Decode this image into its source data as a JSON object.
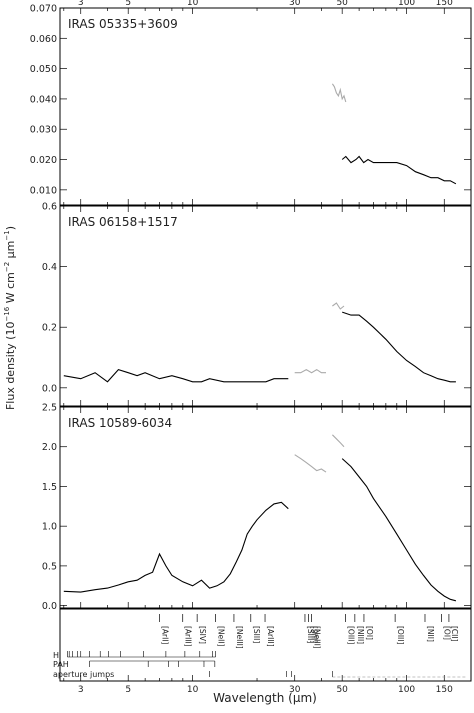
{
  "figure": {
    "ylabel_main": "Flux density (10",
    "ylabel_exp": "−16",
    "ylabel_unit": " W cm",
    "ylabel_exp2": "−2",
    "ylabel_mu": " μm",
    "ylabel_exp3": "−1",
    "ylabel_close": ")",
    "xlabel": "Wavelength (μm)"
  },
  "chart_data": [
    {
      "type": "line",
      "title": "IRAS 05335+3609",
      "xscale": "log",
      "xlim": [
        2.4,
        200
      ],
      "ylim": [
        0.005,
        0.07
      ],
      "top_ticks": [
        "3",
        "5",
        "10",
        "30",
        "50",
        "100",
        "150"
      ],
      "ytick_labels": [
        "0.010",
        "0.020",
        "0.030",
        "0.040",
        "0.050",
        "0.060",
        "0.070"
      ],
      "series": [
        {
          "color": "#aaaaaa",
          "x": [
            45,
            46,
            47,
            48,
            49,
            50,
            51,
            52
          ],
          "y": [
            0.045,
            0.044,
            0.042,
            0.041,
            0.043,
            0.04,
            0.041,
            0.039
          ]
        },
        {
          "color": "#000000",
          "x": [
            50,
            52,
            55,
            58,
            60,
            63,
            66,
            70,
            75,
            80,
            90,
            100,
            110,
            120,
            130,
            140,
            150,
            160,
            170
          ],
          "y": [
            0.02,
            0.021,
            0.019,
            0.02,
            0.021,
            0.019,
            0.02,
            0.019,
            0.019,
            0.019,
            0.019,
            0.018,
            0.016,
            0.015,
            0.014,
            0.014,
            0.013,
            0.013,
            0.012
          ]
        }
      ]
    },
    {
      "type": "line",
      "title": "IRAS 06158+1517",
      "xscale": "log",
      "xlim": [
        2.4,
        200
      ],
      "ylim": [
        -0.06,
        0.6
      ],
      "ytick_labels": [
        "0.0",
        "0.2",
        "0.4",
        "0.6"
      ],
      "series": [
        {
          "color": "#000000",
          "x": [
            2.5,
            3,
            3.5,
            4,
            4.5,
            5,
            5.5,
            6,
            7,
            8,
            9,
            10,
            11,
            12,
            14,
            16,
            18,
            20,
            22,
            24,
            26,
            28
          ],
          "y": [
            0.04,
            0.03,
            0.05,
            0.02,
            0.06,
            0.05,
            0.04,
            0.05,
            0.03,
            0.04,
            0.03,
            0.02,
            0.02,
            0.03,
            0.02,
            0.02,
            0.02,
            0.02,
            0.02,
            0.03,
            0.03,
            0.03
          ]
        },
        {
          "color": "#aaaaaa",
          "x": [
            30,
            32,
            34,
            36,
            38,
            40,
            42
          ],
          "y": [
            0.05,
            0.05,
            0.06,
            0.05,
            0.06,
            0.05,
            0.05
          ]
        },
        {
          "color": "#aaaaaa",
          "x": [
            45,
            47,
            49,
            51
          ],
          "y": [
            0.27,
            0.28,
            0.26,
            0.27
          ]
        },
        {
          "color": "#000000",
          "x": [
            50,
            55,
            60,
            65,
            70,
            80,
            90,
            100,
            110,
            120,
            130,
            140,
            150,
            160,
            170
          ],
          "y": [
            0.25,
            0.24,
            0.24,
            0.22,
            0.2,
            0.16,
            0.12,
            0.09,
            0.07,
            0.05,
            0.04,
            0.03,
            0.025,
            0.02,
            0.02
          ]
        }
      ]
    },
    {
      "type": "line",
      "title": "IRAS 10589-6034",
      "xscale": "log",
      "xlim": [
        2.4,
        200
      ],
      "ylim": [
        -0.03,
        2.5
      ],
      "ytick_labels": [
        "0.0",
        "0.5",
        "1.0",
        "1.5",
        "2.0",
        "2.5"
      ],
      "series": [
        {
          "color": "#000000",
          "x": [
            2.5,
            3,
            3.5,
            4,
            4.5,
            5,
            5.5,
            6,
            6.5,
            7,
            7.5,
            8,
            9,
            10,
            11,
            12,
            13,
            14,
            15,
            16,
            17,
            18,
            19,
            20,
            22,
            24,
            26,
            28
          ],
          "y": [
            0.18,
            0.17,
            0.2,
            0.22,
            0.26,
            0.3,
            0.32,
            0.38,
            0.42,
            0.65,
            0.5,
            0.38,
            0.3,
            0.25,
            0.32,
            0.22,
            0.25,
            0.3,
            0.4,
            0.55,
            0.7,
            0.9,
            1.0,
            1.08,
            1.2,
            1.28,
            1.3,
            1.22
          ]
        },
        {
          "color": "#aaaaaa",
          "x": [
            30,
            32,
            34,
            36,
            38,
            40,
            42
          ],
          "y": [
            1.9,
            1.85,
            1.8,
            1.75,
            1.7,
            1.72,
            1.68
          ]
        },
        {
          "color": "#aaaaaa",
          "x": [
            45,
            47,
            49,
            51
          ],
          "y": [
            2.15,
            2.1,
            2.05,
            2.0
          ]
        },
        {
          "color": "#000000",
          "x": [
            50,
            55,
            60,
            65,
            70,
            80,
            90,
            100,
            110,
            120,
            130,
            140,
            150,
            160,
            170
          ],
          "y": [
            1.85,
            1.75,
            1.62,
            1.5,
            1.35,
            1.12,
            0.9,
            0.7,
            0.52,
            0.38,
            0.26,
            0.18,
            0.12,
            0.08,
            0.06
          ]
        }
      ]
    }
  ],
  "lines": [
    {
      "label": "[ArII]",
      "wl": 6.99
    },
    {
      "label": "[ArIII]",
      "wl": 8.99
    },
    {
      "label": "[SIV]",
      "wl": 10.5
    },
    {
      "label": "[NeII]",
      "wl": 12.8
    },
    {
      "label": "[NeIII]",
      "wl": 15.6
    },
    {
      "label": "[SIII]",
      "wl": 18.7
    },
    {
      "label": "[ArIII]",
      "wl": 21.8
    },
    {
      "label": "[SIII]",
      "wl": 33.5
    },
    {
      "label": "[SiII]",
      "wl": 34.8
    },
    {
      "label": "[NeIII]",
      "wl": 36.0
    },
    {
      "label": "[OIII]",
      "wl": 51.8
    },
    {
      "label": "[NIII]",
      "wl": 57.3
    },
    {
      "label": "[OI]",
      "wl": 63.2
    },
    {
      "label": "[OIII]",
      "wl": 88.4
    },
    {
      "label": "[NII]",
      "wl": 121.9
    },
    {
      "label": "[OI]",
      "wl": 145.5
    },
    {
      "label": "[CII]",
      "wl": 157.7
    }
  ],
  "line_groups": [
    {
      "label": "HI"
    },
    {
      "label": "PAH"
    },
    {
      "label": "aperture jumps"
    }
  ],
  "bottom_ticks": [
    "3",
    "5",
    "10",
    "30",
    "50",
    "100",
    "150"
  ]
}
